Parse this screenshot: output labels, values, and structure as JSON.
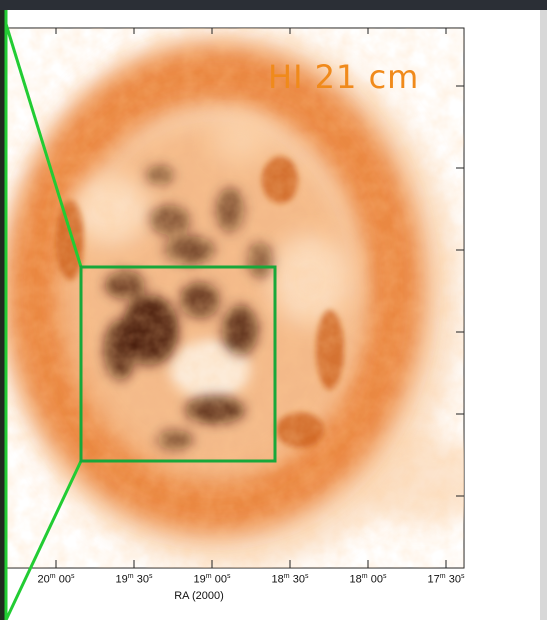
{
  "image": {
    "overlay_label": "HI 21 cm",
    "x_axis_title": "RA (2000)",
    "x_ticks": [
      "20m 00s",
      "19m 30s",
      "19m 00s",
      "18m 30s",
      "18m 00s",
      "17m 30s"
    ],
    "x_ticks_display": [
      {
        "h": "20",
        "m": "m",
        "s": "00",
        "u": "s"
      },
      {
        "h": "19",
        "m": "m",
        "s": "30",
        "u": "s"
      },
      {
        "h": "19",
        "m": "m",
        "s": "00",
        "u": "s"
      },
      {
        "h": "18",
        "m": "m",
        "s": "30",
        "u": "s"
      },
      {
        "h": "18",
        "m": "m",
        "s": "00",
        "u": "s"
      },
      {
        "h": "17",
        "m": "m",
        "s": "30",
        "u": "s"
      }
    ],
    "colors": {
      "emission": "#e0701a",
      "dark_emission": "#2a0a00",
      "box": "#18a83a",
      "label": "#f08a1b"
    }
  }
}
